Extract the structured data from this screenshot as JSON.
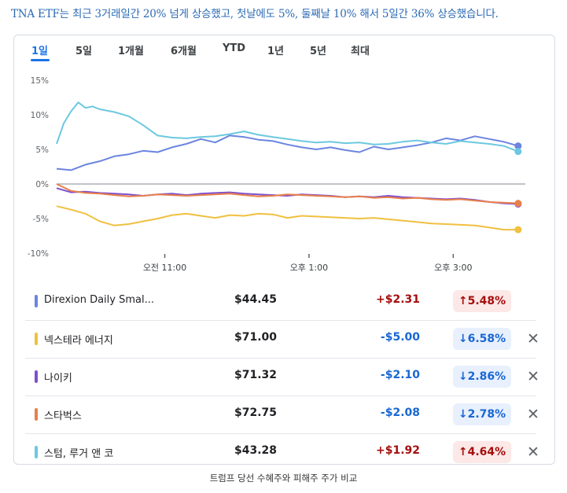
{
  "headline": "TNA ETF는 최근 3거래일간 20% 넘게 상승했고, 첫날에도 5%, 둘째날 10% 해서 5일간 36% 상승했습니다.",
  "tabs": [
    "1일",
    "5일",
    "1개월",
    "6개월",
    "YTD",
    "1년",
    "5년",
    "최대"
  ],
  "active_tab": "1일",
  "caption": "트럼프 당선 수혜주와 피해주 주가 비교",
  "colors": {
    "direxion": "#6b85e0",
    "nextera": "#f0c040",
    "nike": "#7e4fd0",
    "starbucks": "#e8804a",
    "sturm": "#6cc8e0",
    "up_text": "#a50e0e",
    "down_text": "#1967d2"
  },
  "chart_data": {
    "type": "line",
    "title": "",
    "xlabel": "",
    "ylabel": "",
    "y_ticks": [
      "15%",
      "10%",
      "5%",
      "0%",
      "-5%",
      "-10%"
    ],
    "y_tick_values": [
      15,
      10,
      5,
      0,
      -5,
      -10
    ],
    "ylim": [
      -10,
      15
    ],
    "x_ticks": [
      "오전 11:00",
      "오후 1:00",
      "오후 3:00"
    ],
    "x_tick_values": [
      11,
      13,
      15
    ],
    "xlim": [
      9.5,
      16.0
    ],
    "grid": false,
    "zero_line": true,
    "series": [
      {
        "name": "Direxion Daily Smal...",
        "color_key": "direxion",
        "x": [
          9.5,
          9.7,
          9.9,
          10.1,
          10.3,
          10.5,
          10.7,
          10.9,
          11.1,
          11.3,
          11.5,
          11.7,
          11.9,
          12.1,
          12.3,
          12.5,
          12.7,
          12.9,
          13.1,
          13.3,
          13.5,
          13.7,
          13.9,
          14.1,
          14.3,
          14.5,
          14.7,
          14.9,
          15.1,
          15.3,
          15.5,
          15.7,
          15.9
        ],
        "y": [
          2.2,
          2.0,
          2.8,
          3.3,
          4.0,
          4.3,
          4.8,
          4.6,
          5.3,
          5.8,
          6.5,
          6.0,
          7.0,
          6.8,
          6.4,
          6.2,
          5.7,
          5.3,
          5.0,
          5.3,
          4.9,
          4.6,
          5.4,
          5.0,
          5.3,
          5.6,
          6.0,
          6.6,
          6.3,
          6.9,
          6.5,
          6.1,
          5.5
        ]
      },
      {
        "name": "넥스테라 에너지",
        "color_key": "nextera",
        "x": [
          9.5,
          9.7,
          9.9,
          10.1,
          10.3,
          10.5,
          10.7,
          10.9,
          11.1,
          11.3,
          11.5,
          11.7,
          11.9,
          12.1,
          12.3,
          12.5,
          12.7,
          12.9,
          13.1,
          13.3,
          13.5,
          13.7,
          13.9,
          14.1,
          14.3,
          14.5,
          14.7,
          14.9,
          15.1,
          15.3,
          15.5,
          15.7,
          15.9
        ],
        "y": [
          -3.2,
          -3.7,
          -4.3,
          -5.4,
          -6.0,
          -5.8,
          -5.4,
          -5.0,
          -4.5,
          -4.3,
          -4.6,
          -4.9,
          -4.5,
          -4.6,
          -4.3,
          -4.4,
          -4.9,
          -4.6,
          -4.7,
          -4.8,
          -4.9,
          -5.0,
          -4.9,
          -5.1,
          -5.3,
          -5.5,
          -5.7,
          -5.8,
          -5.9,
          -6.0,
          -6.3,
          -6.6,
          -6.6
        ]
      },
      {
        "name": "나이키",
        "color_key": "nike",
        "x": [
          9.5,
          9.7,
          9.9,
          10.1,
          10.3,
          10.5,
          10.7,
          10.9,
          11.1,
          11.3,
          11.5,
          11.7,
          11.9,
          12.1,
          12.3,
          12.5,
          12.7,
          12.9,
          13.1,
          13.3,
          13.5,
          13.7,
          13.9,
          14.1,
          14.3,
          14.5,
          14.7,
          14.9,
          15.1,
          15.3,
          15.5,
          15.7,
          15.9
        ],
        "y": [
          -0.6,
          -1.2,
          -1.1,
          -1.3,
          -1.4,
          -1.5,
          -1.7,
          -1.5,
          -1.4,
          -1.6,
          -1.4,
          -1.3,
          -1.2,
          -1.4,
          -1.5,
          -1.6,
          -1.7,
          -1.5,
          -1.6,
          -1.7,
          -1.9,
          -1.8,
          -1.9,
          -1.7,
          -1.9,
          -2.0,
          -2.1,
          -2.2,
          -2.1,
          -2.3,
          -2.6,
          -2.8,
          -2.9
        ]
      },
      {
        "name": "스타벅스",
        "color_key": "starbucks",
        "x": [
          9.5,
          9.7,
          9.9,
          10.1,
          10.3,
          10.5,
          10.7,
          10.9,
          11.1,
          11.3,
          11.5,
          11.7,
          11.9,
          12.1,
          12.3,
          12.5,
          12.7,
          12.9,
          13.1,
          13.3,
          13.5,
          13.7,
          13.9,
          14.1,
          14.3,
          14.5,
          14.7,
          14.9,
          15.1,
          15.3,
          15.5,
          15.7,
          15.9
        ],
        "y": [
          0.0,
          -1.0,
          -1.3,
          -1.4,
          -1.6,
          -1.8,
          -1.7,
          -1.5,
          -1.6,
          -1.7,
          -1.6,
          -1.5,
          -1.4,
          -1.6,
          -1.8,
          -1.7,
          -1.5,
          -1.6,
          -1.7,
          -1.8,
          -1.9,
          -1.8,
          -2.0,
          -1.9,
          -2.1,
          -2.0,
          -2.2,
          -2.3,
          -2.2,
          -2.4,
          -2.6,
          -2.7,
          -2.8
        ]
      },
      {
        "name": "스텀, 루거 앤 코",
        "color_key": "sturm",
        "x": [
          9.5,
          9.6,
          9.7,
          9.8,
          9.9,
          10.0,
          10.1,
          10.3,
          10.5,
          10.7,
          10.9,
          11.1,
          11.3,
          11.5,
          11.7,
          11.9,
          12.1,
          12.3,
          12.5,
          12.7,
          12.9,
          13.1,
          13.3,
          13.5,
          13.7,
          13.9,
          14.1,
          14.3,
          14.5,
          14.7,
          14.9,
          15.1,
          15.3,
          15.5,
          15.7,
          15.9
        ],
        "y": [
          5.8,
          8.8,
          10.5,
          11.8,
          11.0,
          11.2,
          10.8,
          10.4,
          9.8,
          8.5,
          7.0,
          6.7,
          6.6,
          6.8,
          6.9,
          7.2,
          7.6,
          7.1,
          6.8,
          6.5,
          6.2,
          6.0,
          6.1,
          5.9,
          6.0,
          5.7,
          5.8,
          6.1,
          6.3,
          6.0,
          5.8,
          6.2,
          6.0,
          5.8,
          5.5,
          4.7
        ]
      }
    ]
  },
  "legend": [
    {
      "name": "Direxion Daily Smal...",
      "color_key": "direxion",
      "price": "$44.45",
      "change": "+$2.31",
      "percent": "5.48%",
      "direction": "up",
      "arrow": "↑",
      "closable": false
    },
    {
      "name": "넥스테라 에너지",
      "color_key": "nextera",
      "price": "$71.00",
      "change": "-$5.00",
      "percent": "6.58%",
      "direction": "down",
      "arrow": "↓",
      "closable": true
    },
    {
      "name": "나이키",
      "color_key": "nike",
      "price": "$71.32",
      "change": "-$2.10",
      "percent": "2.86%",
      "direction": "down",
      "arrow": "↓",
      "closable": true
    },
    {
      "name": "스타벅스",
      "color_key": "starbucks",
      "price": "$72.75",
      "change": "-$2.08",
      "percent": "2.78%",
      "direction": "down",
      "arrow": "↓",
      "closable": true
    },
    {
      "name": "스텀, 루거 앤 코",
      "color_key": "sturm",
      "price": "$43.28",
      "change": "+$1.92",
      "percent": "4.64%",
      "direction": "up",
      "arrow": "↑",
      "closable": true
    }
  ],
  "close_glyph": "✕"
}
